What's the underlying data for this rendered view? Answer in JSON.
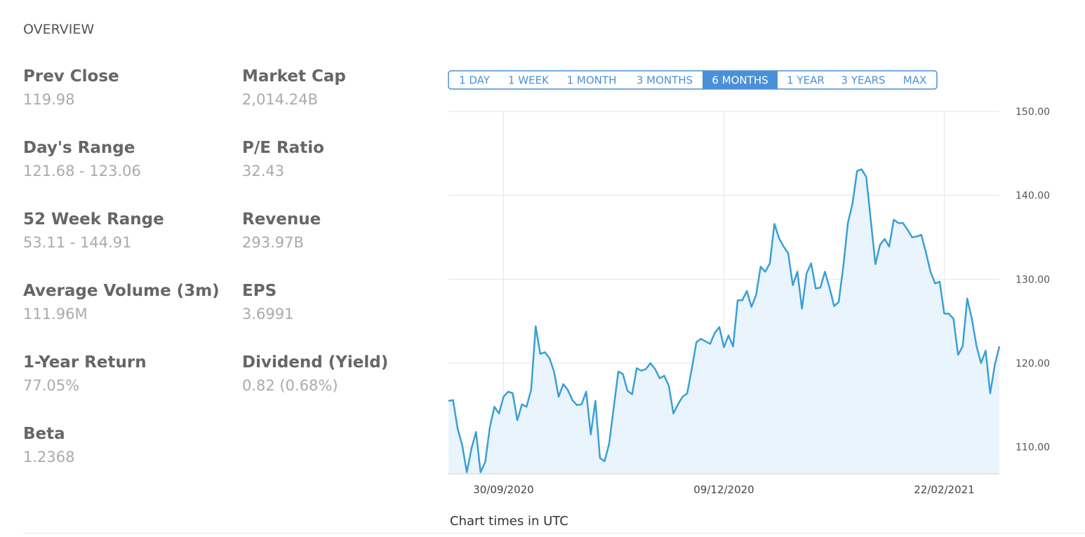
{
  "overview": {
    "title": "OVERVIEW",
    "columns": [
      [
        {
          "label": "Prev Close",
          "value": "119.98"
        },
        {
          "label": "Day's Range",
          "value": "121.68 - 123.06"
        },
        {
          "label": "52 Week Range",
          "value": "53.11 - 144.91"
        },
        {
          "label": "Average Volume (3m)",
          "value": "111.96M"
        },
        {
          "label": "1-Year Return",
          "value": "77.05%"
        },
        {
          "label": "Beta",
          "value": "1.2368"
        }
      ],
      [
        {
          "label": "Market Cap",
          "value": "2,014.24B"
        },
        {
          "label": "P/E Ratio",
          "value": "32.43"
        },
        {
          "label": "Revenue",
          "value": "293.97B"
        },
        {
          "label": "EPS",
          "value": "3.6991"
        },
        {
          "label": "Dividend (Yield)",
          "value": "0.82 (0.68%)"
        }
      ]
    ]
  },
  "range_buttons": [
    "1 DAY",
    "1 WEEK",
    "1 MONTH",
    "3 MONTHS",
    "6 MONTHS",
    "1 YEAR",
    "3 YEARS",
    "MAX"
  ],
  "chart_data": {
    "type": "line",
    "color": "#3a9fd6",
    "fill": "#e9f4fc",
    "grid": true,
    "categories": [
      null,
      null,
      null,
      null,
      null,
      null,
      null,
      null,
      null,
      null,
      null,
      null,
      "30/09/2020",
      null,
      null,
      null,
      null,
      null,
      null,
      null,
      null,
      null,
      null,
      null,
      null,
      null,
      null,
      null,
      null,
      null,
      null,
      null,
      null,
      null,
      null,
      null,
      null,
      null,
      null,
      null,
      null,
      null,
      null,
      null,
      null,
      null,
      null,
      null,
      null,
      null,
      null,
      null,
      null,
      null,
      null,
      null,
      null,
      null,
      null,
      null,
      "09/12/2020",
      null,
      null,
      null,
      null,
      null,
      null,
      null,
      null,
      null,
      null,
      null,
      null,
      null,
      null,
      null,
      null,
      null,
      null,
      null,
      null,
      null,
      null,
      null,
      null,
      null,
      null,
      null,
      null,
      null,
      null,
      null,
      null,
      null,
      null,
      null,
      null,
      null,
      null,
      null,
      null,
      null,
      null,
      null,
      null,
      null,
      null,
      null,
      "22/02/2021",
      null,
      null,
      null,
      null,
      null,
      null,
      null,
      null,
      null,
      null,
      null,
      null
    ],
    "values": [
      115.5,
      115.6,
      112.2,
      110.2,
      107,
      109.8,
      111.8,
      107,
      108.2,
      112.3,
      114.8,
      114.0,
      116.0,
      116.6,
      116.4,
      113.2,
      115.1,
      114.8,
      116.8,
      124.4,
      121.1,
      121.3,
      120.6,
      119.0,
      116.0,
      117.5,
      116.8,
      115.6,
      115.0,
      115.1,
      116.6,
      111.5,
      115.5,
      108.7,
      108.3,
      110.4,
      114.7,
      119.0,
      118.7,
      116.7,
      116.3,
      119.4,
      119.1,
      119.3,
      120.0,
      119.3,
      118.2,
      118.5,
      117.3,
      114.0,
      115.1,
      116.0,
      116.4,
      119.3,
      122.5,
      122.9,
      122.6,
      122.3,
      123.6,
      124.3,
      121.9,
      123.3,
      122.0,
      127.5,
      127.5,
      128.6,
      126.7,
      128.1,
      131.5,
      130.9,
      131.9,
      136.6,
      134.9,
      133.9,
      133.1,
      129.3,
      130.9,
      126.5,
      130.7,
      131.9,
      128.9,
      129.0,
      130.9,
      129.0,
      126.8,
      127.3,
      131.5,
      136.7,
      139.0,
      142.9,
      143.1,
      142.2,
      137.0,
      131.8,
      134.1,
      134.8,
      133.9,
      137.1,
      136.7,
      136.7,
      135.9,
      135.0,
      135.1,
      135.3,
      133.2,
      130.9,
      129.5,
      129.7,
      125.9,
      125.9,
      125.3,
      121.0,
      122.0,
      127.7,
      125.3,
      122.1,
      120.0,
      121.5,
      116.4,
      119.8,
      122.0
    ],
    "ylim": [
      106.8,
      150
    ],
    "yticks": [
      {
        "value": 110,
        "label": "110.00"
      },
      {
        "value": 120,
        "label": "120.00"
      },
      {
        "value": 130,
        "label": "130.00"
      },
      {
        "value": 140,
        "label": "140.00"
      },
      {
        "value": 150,
        "label": "150.00"
      }
    ],
    "note": "Chart times in UTC"
  }
}
